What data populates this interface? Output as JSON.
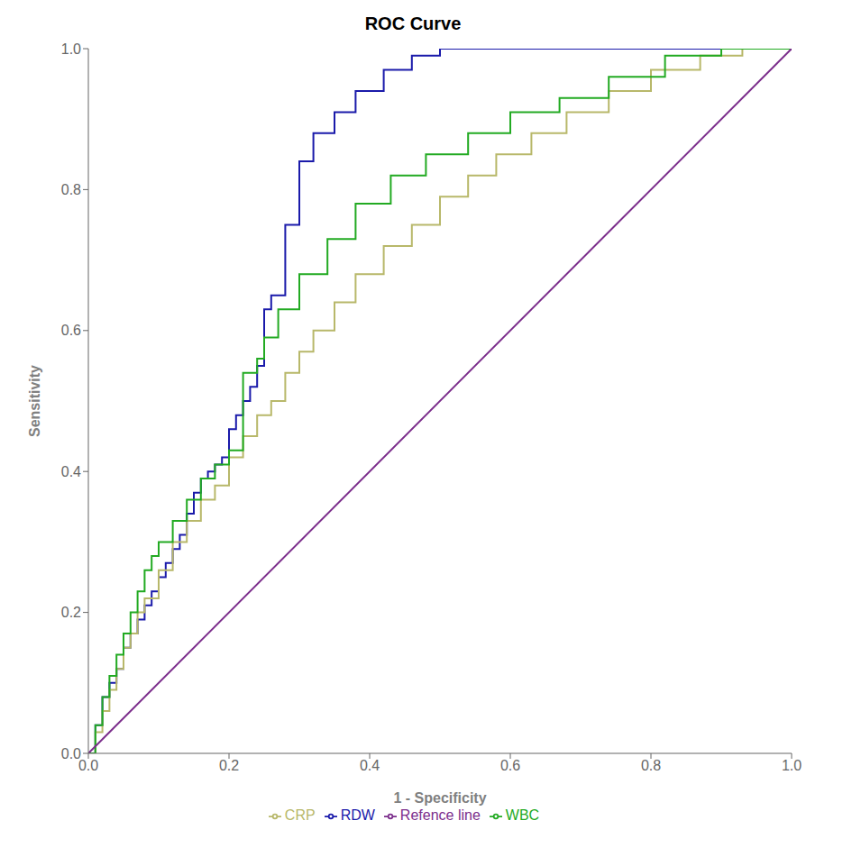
{
  "chart_data": {
    "type": "line",
    "title": "ROC Curve",
    "xlabel": "1 - Specificity",
    "ylabel": "Sensitivity",
    "xlim": [
      0.0,
      1.0
    ],
    "ylim": [
      0.0,
      1.0
    ],
    "xticks": [
      {
        "value": 0,
        "label": "0.0"
      },
      0.2,
      0.4,
      0.6,
      0.8,
      {
        "value": 1,
        "label": "1.0"
      }
    ],
    "yticks": [
      {
        "value": 0,
        "label": "0.0"
      },
      0.2,
      0.4,
      0.6,
      0.8,
      {
        "value": 1,
        "label": "1.0"
      }
    ],
    "grid": false,
    "legend": "bottom",
    "series": [
      {
        "name": "RDW",
        "color": "#1a1aaa",
        "x": [
          0.0,
          0.01,
          0.01,
          0.02,
          0.02,
          0.03,
          0.03,
          0.04,
          0.04,
          0.05,
          0.05,
          0.06,
          0.06,
          0.07,
          0.07,
          0.08,
          0.08,
          0.09,
          0.09,
          0.1,
          0.1,
          0.11,
          0.11,
          0.12,
          0.12,
          0.13,
          0.13,
          0.14,
          0.14,
          0.15,
          0.15,
          0.16,
          0.16,
          0.17,
          0.17,
          0.18,
          0.18,
          0.19,
          0.19,
          0.2,
          0.2,
          0.21,
          0.21,
          0.22,
          0.22,
          0.23,
          0.23,
          0.24,
          0.24,
          0.25,
          0.25,
          0.26,
          0.26,
          0.28,
          0.28,
          0.3,
          0.3,
          0.32,
          0.32,
          0.35,
          0.35,
          0.38,
          0.38,
          0.42,
          0.42,
          0.46,
          0.46,
          0.5,
          0.5,
          0.55,
          0.55,
          0.6,
          0.6,
          0.65,
          0.65,
          0.7,
          0.7,
          1.0
        ],
        "values": [
          0.0,
          0.0,
          0.04,
          0.04,
          0.08,
          0.08,
          0.1,
          0.1,
          0.12,
          0.12,
          0.15,
          0.15,
          0.17,
          0.17,
          0.19,
          0.19,
          0.21,
          0.21,
          0.23,
          0.23,
          0.25,
          0.25,
          0.27,
          0.27,
          0.29,
          0.29,
          0.31,
          0.31,
          0.34,
          0.34,
          0.37,
          0.37,
          0.39,
          0.39,
          0.4,
          0.4,
          0.41,
          0.41,
          0.42,
          0.42,
          0.46,
          0.46,
          0.48,
          0.48,
          0.5,
          0.5,
          0.52,
          0.52,
          0.55,
          0.55,
          0.63,
          0.63,
          0.65,
          0.65,
          0.75,
          0.75,
          0.84,
          0.84,
          0.88,
          0.88,
          0.91,
          0.91,
          0.94,
          0.94,
          0.97,
          0.97,
          0.99,
          0.99,
          1.0,
          1.0,
          1.0,
          1.0,
          1.0,
          1.0,
          1.0,
          1.0,
          1.0,
          1.0
        ]
      },
      {
        "name": "CRP",
        "color": "#b8b86a",
        "x": [
          0.0,
          0.01,
          0.01,
          0.02,
          0.02,
          0.03,
          0.03,
          0.04,
          0.04,
          0.05,
          0.05,
          0.06,
          0.06,
          0.07,
          0.07,
          0.08,
          0.08,
          0.1,
          0.1,
          0.12,
          0.12,
          0.14,
          0.14,
          0.16,
          0.16,
          0.18,
          0.18,
          0.2,
          0.2,
          0.22,
          0.22,
          0.24,
          0.24,
          0.26,
          0.26,
          0.28,
          0.28,
          0.3,
          0.3,
          0.32,
          0.32,
          0.35,
          0.35,
          0.38,
          0.38,
          0.42,
          0.42,
          0.46,
          0.46,
          0.5,
          0.5,
          0.54,
          0.54,
          0.58,
          0.58,
          0.63,
          0.63,
          0.68,
          0.68,
          0.74,
          0.74,
          0.8,
          0.8,
          0.87,
          0.87,
          0.93,
          0.93,
          1.0
        ],
        "values": [
          0.0,
          0.0,
          0.03,
          0.03,
          0.06,
          0.06,
          0.09,
          0.09,
          0.12,
          0.12,
          0.15,
          0.15,
          0.17,
          0.17,
          0.2,
          0.2,
          0.22,
          0.22,
          0.26,
          0.26,
          0.3,
          0.3,
          0.33,
          0.33,
          0.36,
          0.36,
          0.38,
          0.38,
          0.42,
          0.42,
          0.45,
          0.45,
          0.48,
          0.48,
          0.5,
          0.5,
          0.54,
          0.54,
          0.57,
          0.57,
          0.6,
          0.6,
          0.64,
          0.64,
          0.68,
          0.68,
          0.72,
          0.72,
          0.75,
          0.75,
          0.79,
          0.79,
          0.82,
          0.82,
          0.85,
          0.85,
          0.88,
          0.88,
          0.91,
          0.91,
          0.94,
          0.94,
          0.97,
          0.97,
          0.99,
          0.99,
          1.0,
          1.0
        ]
      },
      {
        "name": "WBC",
        "color": "#22aa22",
        "x": [
          0.0,
          0.01,
          0.01,
          0.02,
          0.02,
          0.03,
          0.03,
          0.04,
          0.04,
          0.05,
          0.05,
          0.06,
          0.06,
          0.07,
          0.07,
          0.08,
          0.08,
          0.09,
          0.09,
          0.1,
          0.1,
          0.12,
          0.12,
          0.14,
          0.14,
          0.16,
          0.16,
          0.18,
          0.18,
          0.2,
          0.2,
          0.22,
          0.22,
          0.24,
          0.24,
          0.25,
          0.25,
          0.27,
          0.27,
          0.3,
          0.3,
          0.34,
          0.34,
          0.38,
          0.38,
          0.43,
          0.43,
          0.48,
          0.48,
          0.54,
          0.54,
          0.6,
          0.6,
          0.67,
          0.67,
          0.74,
          0.74,
          0.82,
          0.82,
          0.9,
          0.9,
          1.0
        ],
        "values": [
          0.0,
          0.0,
          0.04,
          0.04,
          0.08,
          0.08,
          0.11,
          0.11,
          0.14,
          0.14,
          0.17,
          0.17,
          0.2,
          0.2,
          0.23,
          0.23,
          0.26,
          0.26,
          0.28,
          0.28,
          0.3,
          0.3,
          0.33,
          0.33,
          0.36,
          0.36,
          0.39,
          0.39,
          0.41,
          0.41,
          0.43,
          0.43,
          0.54,
          0.54,
          0.56,
          0.56,
          0.59,
          0.59,
          0.63,
          0.63,
          0.68,
          0.68,
          0.73,
          0.73,
          0.78,
          0.78,
          0.82,
          0.82,
          0.85,
          0.85,
          0.88,
          0.88,
          0.91,
          0.91,
          0.93,
          0.93,
          0.96,
          0.96,
          0.99,
          0.99,
          1.0,
          1.0
        ]
      },
      {
        "name": "Refence line",
        "color": "#7b2d8b",
        "x": [
          0,
          1
        ],
        "values": [
          0,
          1
        ]
      }
    ]
  }
}
